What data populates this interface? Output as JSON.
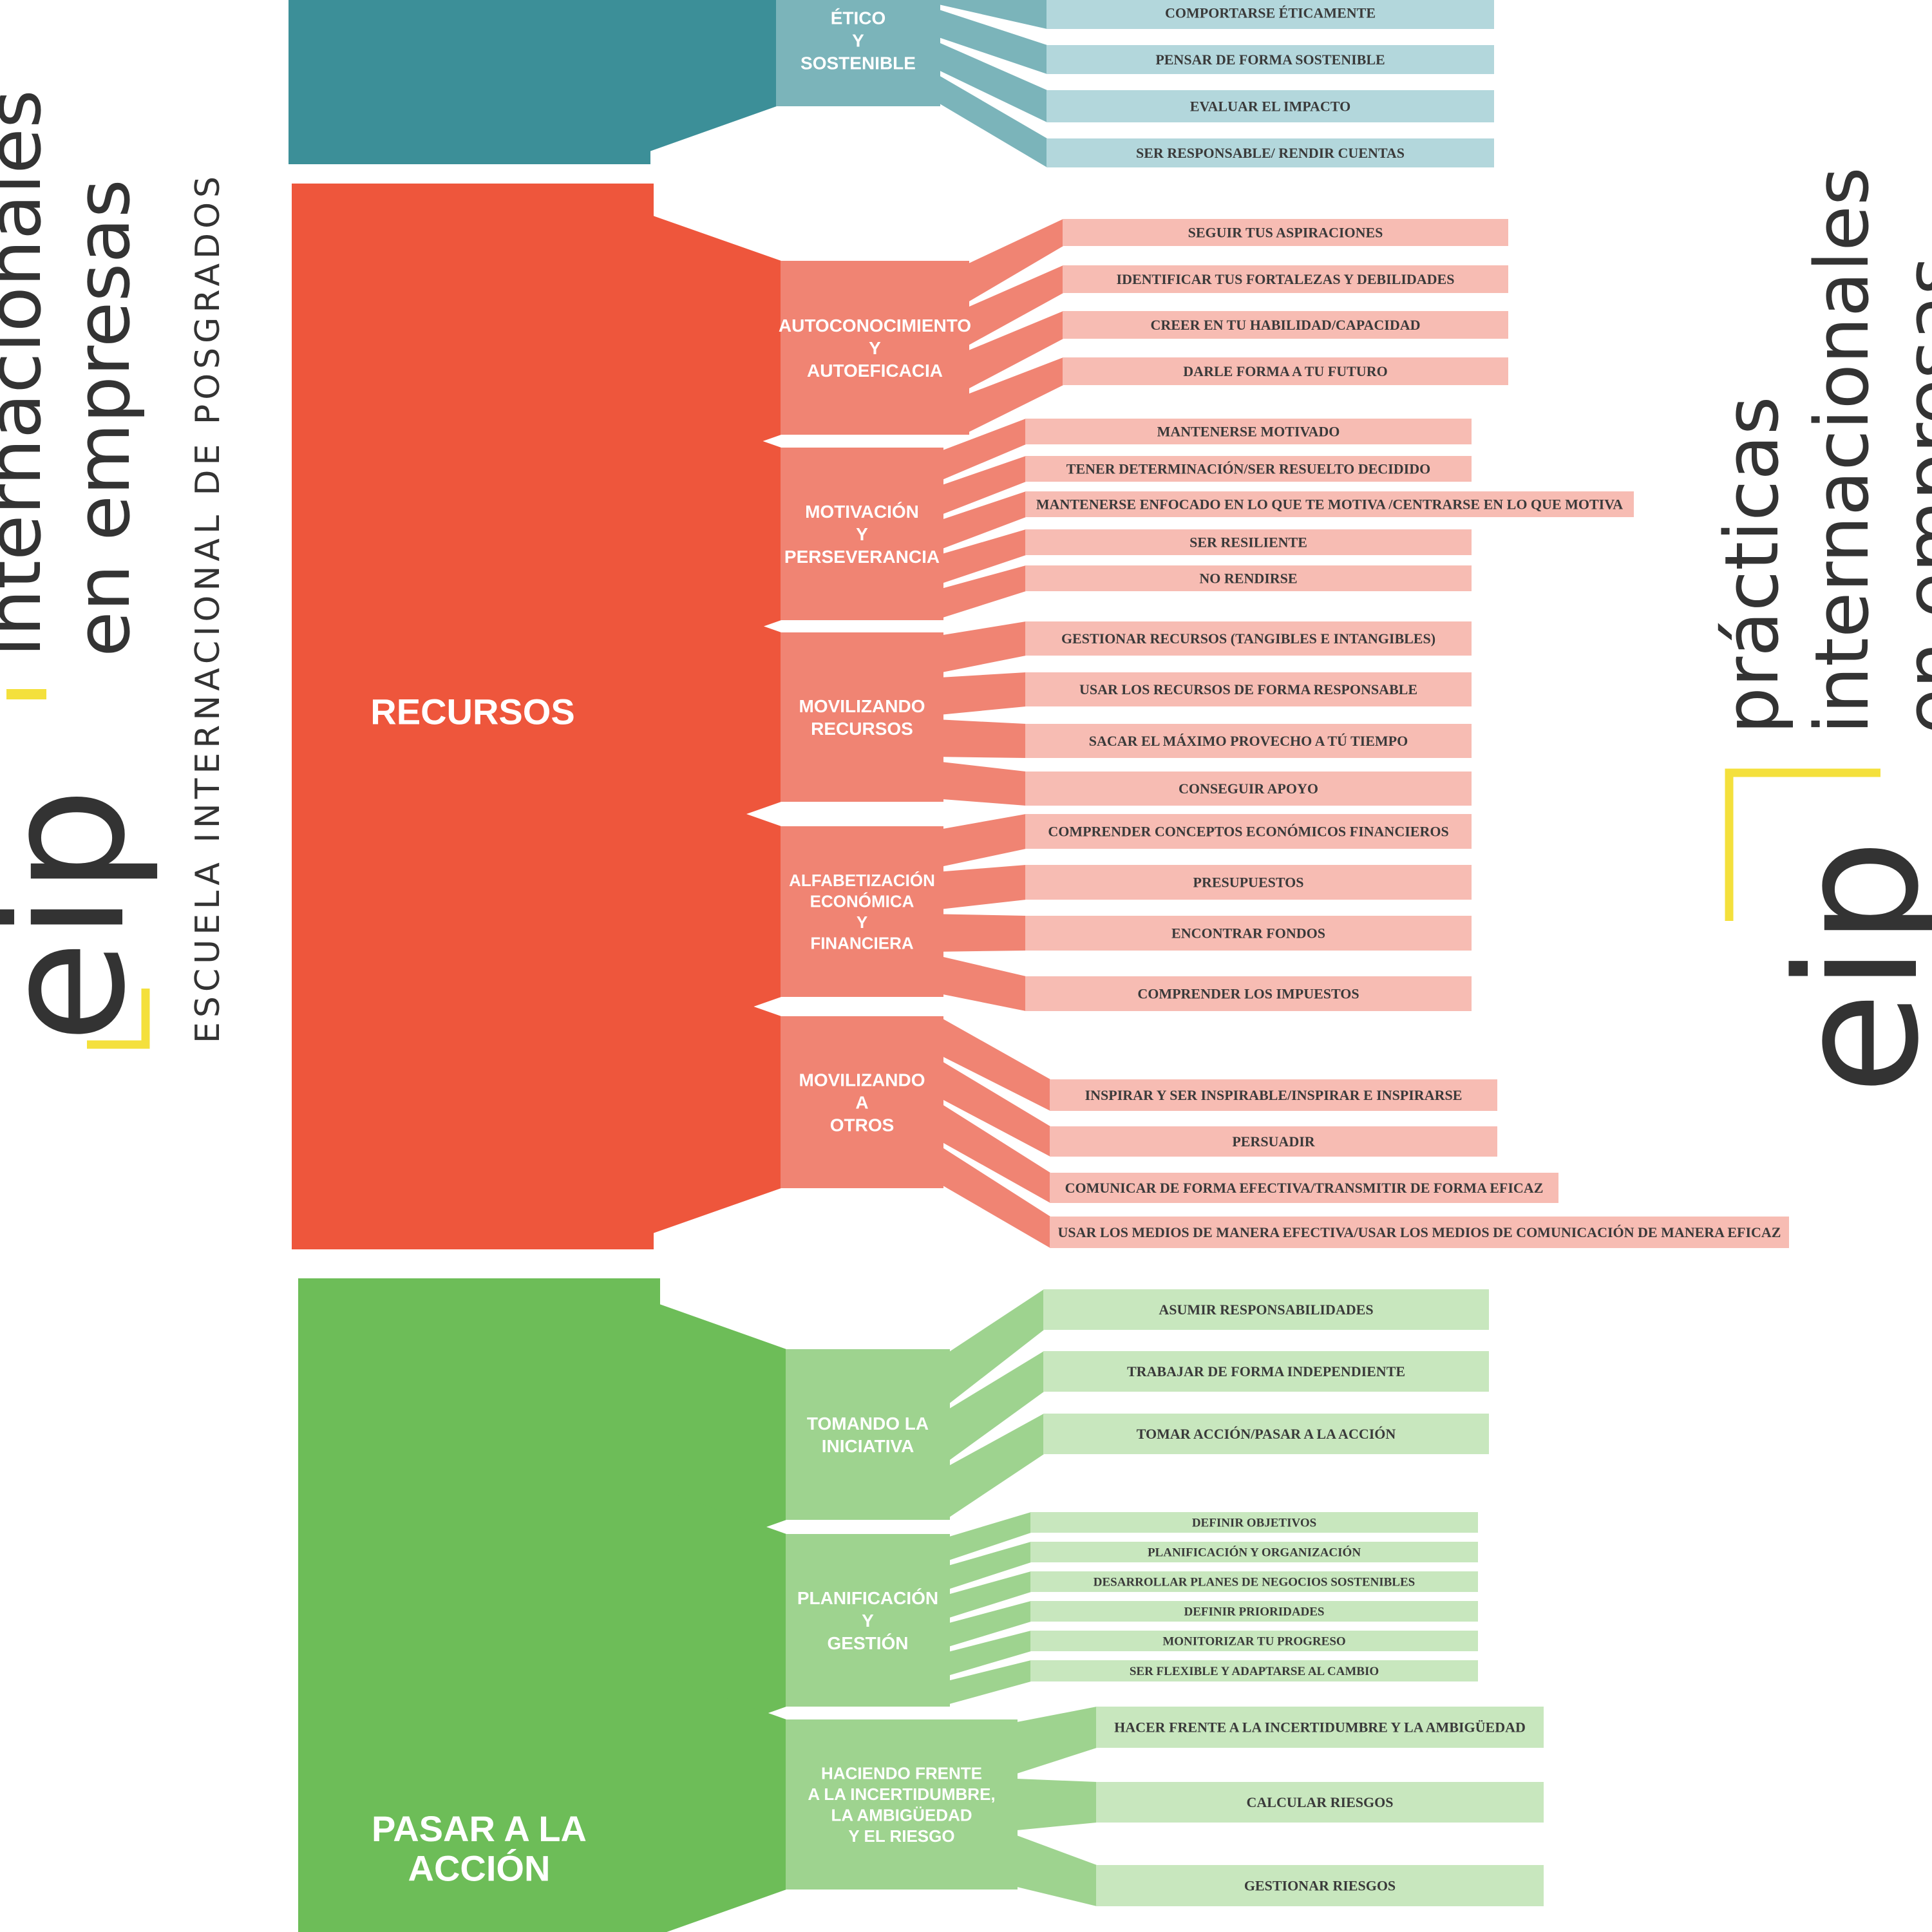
{
  "brand_left": {
    "logo": "eip",
    "line1": "internacionales",
    "line2": "en empresas",
    "tagline": "ESCUELA INTERNACIONAL DE POSGRADOS"
  },
  "brand_right": {
    "logo": "eip",
    "line1": "prácticas",
    "line2": "internacionales",
    "line3": "en empresas"
  },
  "colors": {
    "teal_main": "#3c8f98",
    "teal_sub": "#7bb4ba",
    "teal_item": "#b3d7dc",
    "red_main": "#ee563c",
    "red_sub": "#f08473",
    "red_item": "#f7bcb3",
    "green_main": "#6dbd58",
    "green_sub": "#9ed38f",
    "green_item": "#c8e7be",
    "accent_yellow": "#f4e03c"
  },
  "areas": [
    {
      "id": "etico",
      "label": "",
      "subs": [
        {
          "label": "ÉTICO\nY\nSOSTENIBLE",
          "items": [
            "COMPORTARSE ÉTICAMENTE",
            "PENSAR DE FORMA SOSTENIBLE",
            "EVALUAR EL IMPACTO",
            "SER RESPONSABLE/ RENDIR CUENTAS"
          ]
        }
      ]
    },
    {
      "id": "recursos",
      "label": "RECURSOS",
      "subs": [
        {
          "label": "AUTOCONOCIMIENTO\nY\nAUTOEFICACIA",
          "items": [
            "SEGUIR TUS ASPIRACIONES",
            "IDENTIFICAR TUS FORTALEZAS Y DEBILIDADES",
            "CREER EN TU HABILIDAD/CAPACIDAD",
            "DARLE FORMA A TU FUTURO"
          ]
        },
        {
          "label": "MOTIVACIÓN\nY\nPERSEVERANCIA",
          "items": [
            "MANTENERSE MOTIVADO",
            "TENER DETERMINACIÓN/SER RESUELTO DECIDIDO",
            "MANTENERSE ENFOCADO EN LO QUE TE MOTIVA /CENTRARSE EN LO QUE MOTIVA",
            "SER RESILIENTE",
            "NO RENDIRSE"
          ]
        },
        {
          "label": "MOVILIZANDO\nRECURSOS",
          "items": [
            "GESTIONAR RECURSOS (TANGIBLES E INTANGIBLES)",
            "USAR LOS RECURSOS DE FORMA RESPONSABLE",
            "SACAR EL MÁXIMO PROVECHO A TÚ TIEMPO",
            "CONSEGUIR APOYO"
          ]
        },
        {
          "label": "ALFABETIZACIÓN\nECONÓMICA\nY\nFINANCIERA",
          "items": [
            "COMPRENDER CONCEPTOS ECONÓMICOS FINANCIEROS",
            "PRESUPUESTOS",
            "ENCONTRAR FONDOS",
            "COMPRENDER LOS IMPUESTOS"
          ]
        },
        {
          "label": "MOVILIZANDO\nA\nOTROS",
          "items": [
            "INSPIRAR Y SER INSPIRABLE/INSPIRAR E INSPIRARSE",
            "PERSUADIR",
            "COMUNICAR DE FORMA EFECTIVA/TRANSMITIR DE FORMA EFICAZ",
            "USAR LOS MEDIOS DE MANERA EFECTIVA/USAR LOS MEDIOS DE COMUNICACIÓN DE MANERA EFICAZ"
          ]
        }
      ]
    },
    {
      "id": "accion",
      "label": "PASAR A LA\nACCIÓN",
      "subs": [
        {
          "label": "TOMANDO LA\nINICIATIVA",
          "items": [
            "ASUMIR RESPONSABILIDADES",
            "TRABAJAR DE FORMA INDEPENDIENTE",
            "TOMAR ACCIÓN/PASAR A LA ACCIÓN"
          ]
        },
        {
          "label": "PLANIFICACIÓN\nY\nGESTIÓN",
          "items": [
            "DEFINIR OBJETIVOS",
            "PLANIFICACIÓN Y ORGANIZACIÓN",
            "DESARROLLAR PLANES DE NEGOCIOS SOSTENIBLES",
            "DEFINIR PRIORIDADES",
            "MONITORIZAR TU PROGRESO",
            "SER FLEXIBLE Y ADAPTARSE AL CAMBIO"
          ]
        },
        {
          "label": "HACIENDO FRENTE\nA LA INCERTIDUMBRE,\nLA AMBIGÜEDAD\nY EL RIESGO",
          "items": [
            "HACER FRENTE A LA INCERTIDUMBRE Y LA AMBIGÜEDAD",
            "CALCULAR RIESGOS",
            "GESTIONAR RIESGOS"
          ]
        }
      ]
    }
  ]
}
